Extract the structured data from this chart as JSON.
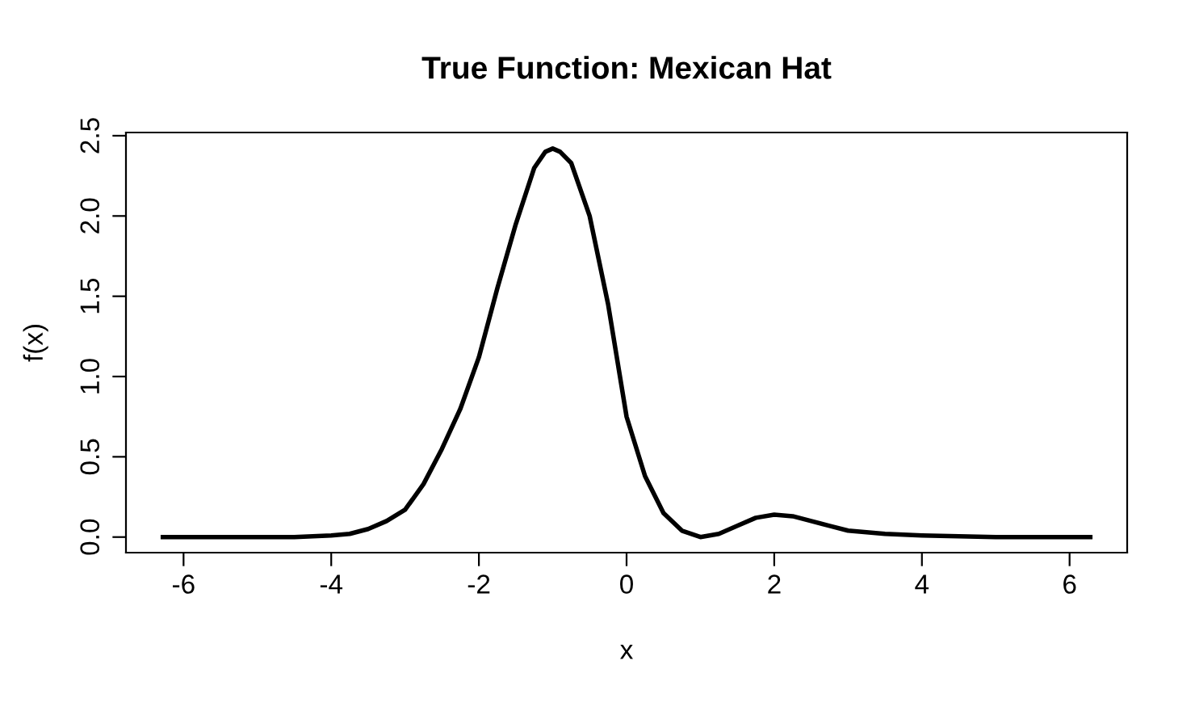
{
  "chart_data": {
    "type": "line",
    "title": "True Function: Mexican Hat",
    "xlabel": "x",
    "ylabel": "f(x)",
    "series": [
      {
        "color": "#000000",
        "x": [
          -6.28,
          -5,
          -4.5,
          -4,
          -3.75,
          -3.5,
          -3.25,
          -3,
          -2.75,
          -2.5,
          -2.25,
          -2,
          -1.75,
          -1.5,
          -1.25,
          -1.1,
          -1,
          -0.9,
          -0.75,
          -0.5,
          -0.25,
          0,
          0.25,
          0.5,
          0.75,
          1,
          1.25,
          1.5,
          1.75,
          2,
          2.25,
          2.5,
          2.75,
          3,
          3.5,
          4,
          5,
          6.28
        ],
        "values": [
          0,
          0,
          0.0,
          0.01,
          0.02,
          0.05,
          0.1,
          0.17,
          0.33,
          0.55,
          0.8,
          1.12,
          1.55,
          1.95,
          2.3,
          2.4,
          2.42,
          2.4,
          2.33,
          2.0,
          1.45,
          0.75,
          0.38,
          0.15,
          0.04,
          0.0,
          0.02,
          0.07,
          0.12,
          0.14,
          0.13,
          0.1,
          0.07,
          0.04,
          0.02,
          0.01,
          0.0,
          0.0
        ]
      }
    ],
    "xlim": [
      -6.78,
      6.78
    ],
    "ylim": [
      -0.097,
      2.52
    ],
    "xticks": [
      -6,
      -4,
      -2,
      0,
      2,
      4,
      6
    ],
    "yticks": [
      {
        "value": 0,
        "label": "0.0"
      },
      0.5,
      {
        "value": 1,
        "label": "1.0"
      },
      1.5,
      {
        "value": 2,
        "label": "2.0"
      },
      2.5
    ],
    "grid": false,
    "legend": false,
    "line_style": "solid",
    "marker": "none"
  }
}
